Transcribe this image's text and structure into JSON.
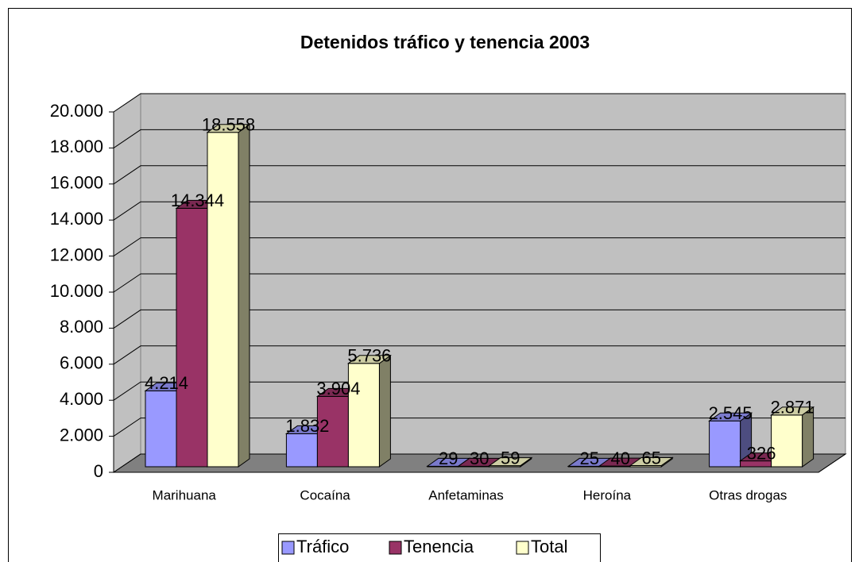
{
  "chart_data": {
    "type": "bar3d",
    "title": "Detenidos tráfico y tenencia 2003",
    "categories": [
      "Marihuana",
      "Cocaína",
      "Anfetaminas",
      "Heroína",
      "Otras drogas"
    ],
    "series": [
      {
        "name": "Tráfico",
        "color": "#9999ff",
        "values": [
          4214,
          1832,
          29,
          25,
          2545
        ],
        "value_labels": [
          "4.214",
          "1.832",
          "29",
          "25",
          "2.545"
        ]
      },
      {
        "name": "Tenencia",
        "color": "#993366",
        "values": [
          14344,
          3904,
          30,
          40,
          326
        ],
        "value_labels": [
          "14.344",
          "3.904",
          "30",
          "40",
          "326"
        ]
      },
      {
        "name": "Total",
        "color": "#ffffcc",
        "values": [
          18558,
          5736,
          59,
          65,
          2871
        ],
        "value_labels": [
          "18.558",
          "5.736",
          "59",
          "65",
          "2.871"
        ]
      }
    ],
    "ylim": [
      0,
      20000
    ],
    "yticks": [
      0,
      {
        "value": 2000,
        "label": "2.000"
      },
      {
        "value": 4000,
        "label": "4.000"
      },
      {
        "value": 6000,
        "label": "6.000"
      },
      {
        "value": 8000,
        "label": "8.000"
      },
      {
        "value": 10000,
        "label": "10.000"
      },
      {
        "value": 12000,
        "label": "12.000"
      },
      {
        "value": 14000,
        "label": "14.000"
      },
      {
        "value": 16000,
        "label": "16.000"
      },
      {
        "value": 18000,
        "label": "18.000"
      },
      {
        "value": 20000,
        "label": "20.000"
      }
    ],
    "grid": true,
    "legend": "bottom"
  }
}
